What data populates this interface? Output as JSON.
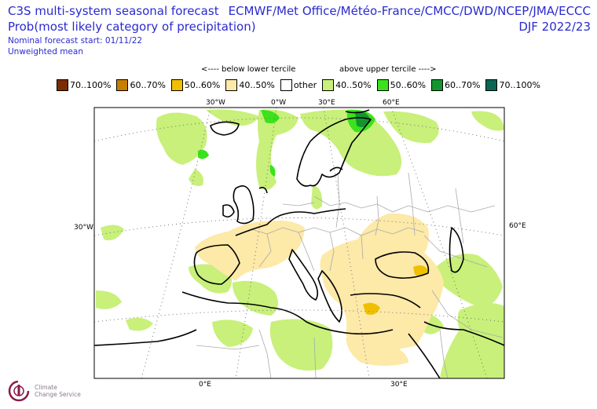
{
  "header": {
    "title_line1": "C3S multi-system seasonal forecast",
    "title_line2": "Prob(most likely category of precipitation)",
    "start": "Nominal forecast start: 01/11/22",
    "mean": "Unweighted mean",
    "centres": "ECMWF/Met Office/Météo-France/CMCC/DWD/NCEP/JMA/ECCC",
    "season": "DJF 2022/23"
  },
  "tercile_labels": {
    "below": "<---- below lower tercile",
    "above": "above upper tercile ---->"
  },
  "legend": [
    {
      "label": "70..100%",
      "color": "#7b2d00"
    },
    {
      "label": "60..70%",
      "color": "#c77f00"
    },
    {
      "label": "50..60%",
      "color": "#f0c000"
    },
    {
      "label": "40..50%",
      "color": "#fde9a8"
    },
    {
      "label": "other",
      "color": "#ffffff"
    },
    {
      "label": "40..50%",
      "color": "#c8f07a"
    },
    {
      "label": "50..60%",
      "color": "#3ce21c"
    },
    {
      "label": "60..70%",
      "color": "#13962e"
    },
    {
      "label": "70..100%",
      "color": "#0a6655"
    }
  ],
  "graticule_labels": {
    "top": [
      "30°W",
      "0°W",
      "30°E",
      "60°E"
    ],
    "left": "30°W",
    "right": "60°E",
    "bottom": [
      "0°E",
      "30°E"
    ]
  },
  "logo": {
    "line1": "Climate",
    "line2": "Change Service",
    "icon": "c3s-logo-icon"
  }
}
